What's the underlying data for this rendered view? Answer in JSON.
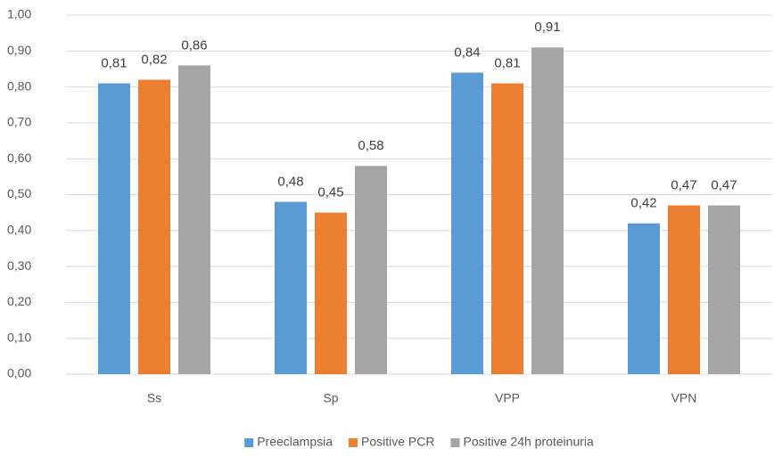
{
  "chart_data": {
    "type": "bar",
    "categories": [
      "Ss",
      "Sp",
      "VPP",
      "VPN"
    ],
    "series": [
      {
        "name": "Preeclampsia",
        "color": "#5b9bd5",
        "values": [
          0.81,
          0.48,
          0.84,
          0.42
        ],
        "value_labels": [
          "0,81",
          "0,48",
          "0,84",
          "0,42"
        ]
      },
      {
        "name": "Positive PCR",
        "color": "#ed7d31",
        "values": [
          0.82,
          0.45,
          0.81,
          0.47
        ],
        "value_labels": [
          "0,82",
          "0,45",
          "0,81",
          "0,47"
        ]
      },
      {
        "name": "Positive 24h proteinuria",
        "color": "#a5a5a5",
        "values": [
          0.86,
          0.58,
          0.91,
          0.47
        ],
        "value_labels": [
          "0,86",
          "0,58",
          "0,91",
          "0,47"
        ]
      }
    ],
    "ylim": [
      0,
      1
    ],
    "yticks": [
      {
        "value": 0,
        "label": "0,00"
      },
      {
        "value": 0.1,
        "label": "0,10"
      },
      {
        "value": 0.2,
        "label": "0,20"
      },
      {
        "value": 0.3,
        "label": "0,30"
      },
      {
        "value": 0.4,
        "label": "0,40"
      },
      {
        "value": 0.5,
        "label": "0,50"
      },
      {
        "value": 0.6,
        "label": "0,60"
      },
      {
        "value": 0.7,
        "label": "0,70"
      },
      {
        "value": 0.8,
        "label": "0,80"
      },
      {
        "value": 0.9,
        "label": "0,90"
      },
      {
        "value": 1,
        "label": "1,00"
      }
    ],
    "grid": true,
    "legend": "bottom"
  }
}
